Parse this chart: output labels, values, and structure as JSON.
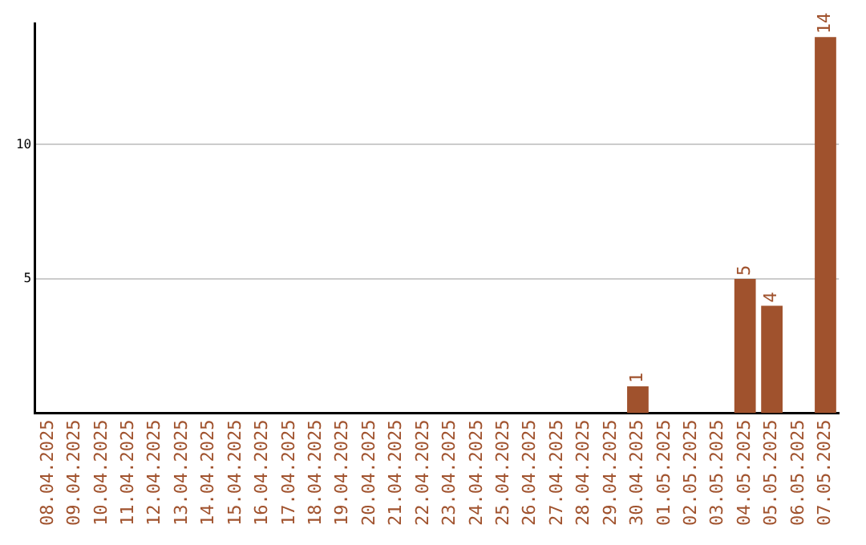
{
  "chart_data": {
    "type": "bar",
    "categories": [
      "08.04.2025",
      "09.04.2025",
      "10.04.2025",
      "11.04.2025",
      "12.04.2025",
      "13.04.2025",
      "14.04.2025",
      "15.04.2025",
      "16.04.2025",
      "17.04.2025",
      "18.04.2025",
      "19.04.2025",
      "20.04.2025",
      "21.04.2025",
      "22.04.2025",
      "23.04.2025",
      "24.04.2025",
      "25.04.2025",
      "26.04.2025",
      "27.04.2025",
      "28.04.2025",
      "29.04.2025",
      "30.04.2025",
      "01.05.2025",
      "02.05.2025",
      "03.05.2025",
      "04.05.2025",
      "05.05.2025",
      "06.05.2025",
      "07.05.2025"
    ],
    "values": [
      0,
      0,
      0,
      0,
      0,
      0,
      0,
      0,
      0,
      0,
      0,
      0,
      0,
      0,
      0,
      0,
      0,
      0,
      0,
      0,
      0,
      0,
      1,
      0,
      0,
      0,
      5,
      4,
      0,
      14
    ],
    "value_labels": [
      null,
      null,
      null,
      null,
      null,
      null,
      null,
      null,
      null,
      null,
      null,
      null,
      null,
      null,
      null,
      null,
      null,
      null,
      null,
      null,
      null,
      null,
      "1",
      null,
      null,
      null,
      "5",
      "4",
      null,
      "14"
    ],
    "color": "#a0522d",
    "ylim": [
      0,
      14.5
    ],
    "yticks": [
      5,
      10
    ],
    "grid": "y",
    "legend": false
  }
}
